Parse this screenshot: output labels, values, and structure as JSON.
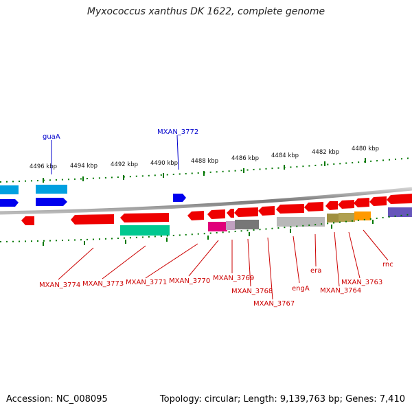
{
  "title": "Myxococcus xanthus DK 1622, complete genome",
  "accession": "Accession: NC_008095",
  "summary": "Topology: circular; Length: 9,139,763 bp; Genes: 7,410",
  "scale_labels": [
    "4496 kbp",
    "4494 kbp",
    "4492 kbp",
    "4490 kbp",
    "4488 kbp",
    "4486 kbp",
    "4484 kbp",
    "4482 kbp",
    "4480 kbp"
  ],
  "top_genes": [
    "guaA",
    "MXAN_3772"
  ],
  "bottom_genes": [
    "MXAN_3774",
    "MXAN_3773",
    "MXAN_3771",
    "MXAN_3770",
    "MXAN_3769",
    "MXAN_3768",
    "MXAN_3767",
    "engA",
    "era",
    "MXAN_3764",
    "MXAN_3763",
    "rnc"
  ],
  "colors": {
    "forward_gene": "#0000ee",
    "forward_gene_light": "#00a0e0",
    "reverse_gene": "#ee0000",
    "teal_gene": "#00c890",
    "magenta_gene": "#e0007a",
    "gray_gene": "#777777",
    "light_gray_gene": "#b8b8b8",
    "olive_gene": "#a09040",
    "orange_gene": "#ff9900",
    "purple_gene": "#6655bb",
    "backbone": "#888888",
    "ticks": "#007700",
    "red_label": "#cc0000",
    "blue_label": "#0000cc"
  }
}
